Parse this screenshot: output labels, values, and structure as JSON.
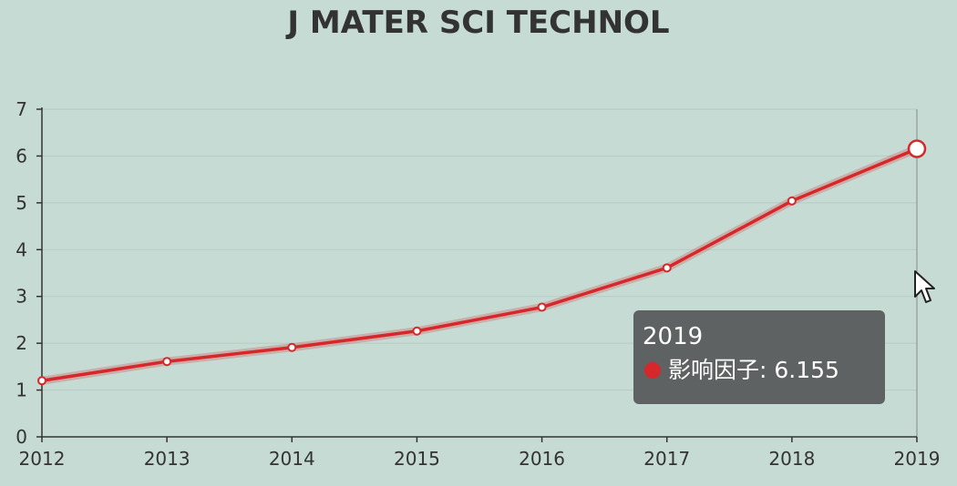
{
  "chart_data": {
    "type": "line",
    "title": "J MATER SCI TECHNOL",
    "categories": [
      "2012",
      "2013",
      "2014",
      "2015",
      "2016",
      "2017",
      "2018",
      "2019"
    ],
    "series": [
      {
        "name": "影响因子",
        "values": [
          1.2,
          1.61,
          1.91,
          2.26,
          2.77,
          3.61,
          5.04,
          6.155
        ],
        "color": "#d6282b"
      }
    ],
    "ylim": [
      0,
      7
    ],
    "yticks": [
      "0",
      "1",
      "2",
      "3",
      "4",
      "5",
      "6",
      "7"
    ],
    "grid": true
  },
  "tooltip": {
    "title": "2019",
    "series_label": "影响因子",
    "value": "6.155"
  },
  "colors": {
    "background": "#c6dbd3",
    "line": "#d6282b",
    "tooltip_bg": "#5a5c5c"
  },
  "icons": {
    "cursor": "mouse-pointer-icon"
  }
}
